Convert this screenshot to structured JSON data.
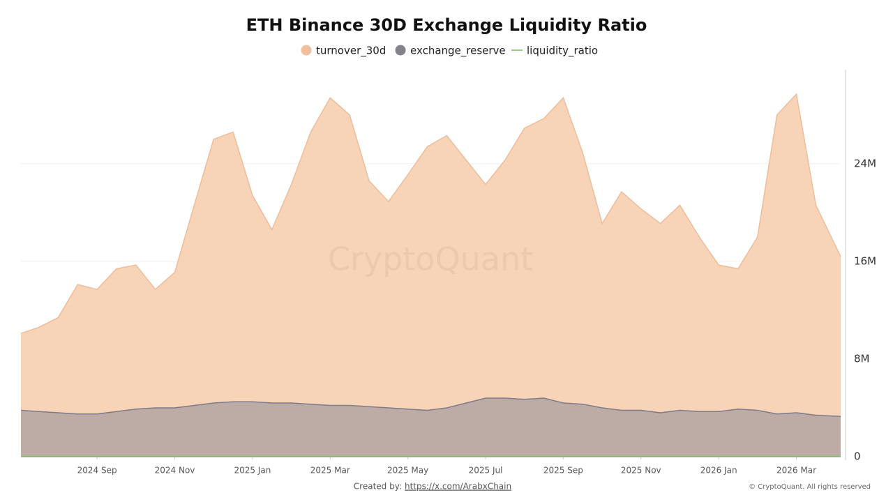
{
  "chart_data": {
    "type": "area",
    "title": "ETH Binance 30D Exchange Liquidity Ratio",
    "watermark": "CryptoQuant",
    "credit_label": "Created by:",
    "credit_link": "https://x.com/ArabxChain",
    "copyright": "© CryptoQuant. All rights reserved",
    "x": [
      0.04,
      0.5,
      1,
      1.5,
      2,
      2.5,
      3,
      3.5,
      4,
      4.5,
      5,
      5.5,
      6,
      6.5,
      7,
      7.5,
      8,
      8.5,
      9,
      9.5,
      10,
      10.5,
      11,
      11.5,
      12,
      12.5,
      13,
      13.5,
      14,
      14.5,
      15,
      15.5,
      16,
      16.5,
      17,
      17.5,
      18,
      18.5,
      19,
      19.5,
      20,
      20.5,
      21.14
    ],
    "xlim": [
      0.04,
      21.14
    ],
    "xticks": [
      {
        "value": 2,
        "label": "2024 Sep"
      },
      {
        "value": 4,
        "label": "2024 Nov"
      },
      {
        "value": 6,
        "label": "2025 Jan"
      },
      {
        "value": 8,
        "label": "2025 Mar"
      },
      {
        "value": 10,
        "label": "2025 May"
      },
      {
        "value": 12,
        "label": "2025 Jul"
      },
      {
        "value": 14,
        "label": "2025 Sep"
      },
      {
        "value": 16,
        "label": "2025 Nov"
      },
      {
        "value": 18,
        "label": "2026 Jan"
      },
      {
        "value": 20,
        "label": "2026 Mar"
      }
    ],
    "ylim": [
      0,
      31700000
    ],
    "yticks": [
      0,
      {
        "value": 8000000,
        "label": "8M"
      },
      {
        "value": 16000000,
        "label": "16M"
      },
      {
        "value": 24000000,
        "label": "24M"
      }
    ],
    "grid": true,
    "series": [
      {
        "name": "turnover_30d",
        "color": "#f0c09c",
        "values": [
          10100000,
          10600000,
          11400000,
          14100000,
          13700000,
          15400000,
          15700000,
          13700000,
          15100000,
          20600000,
          26000000,
          26600000,
          21400000,
          18600000,
          22300000,
          26600000,
          29400000,
          28000000,
          22600000,
          20900000,
          23100000,
          25400000,
          26300000,
          24300000,
          22300000,
          24300000,
          26900000,
          27700000,
          29400000,
          24900000,
          19100000,
          21700000,
          20300000,
          19100000,
          20600000,
          18000000,
          15700000,
          15400000,
          18000000,
          28000000,
          29700000,
          20600000,
          16400000
        ]
      },
      {
        "name": "exchange_reserve",
        "color": "#85828e",
        "values": [
          3800000,
          3700000,
          3600000,
          3500000,
          3500000,
          3700000,
          3900000,
          4000000,
          4000000,
          4200000,
          4400000,
          4500000,
          4500000,
          4400000,
          4400000,
          4300000,
          4200000,
          4200000,
          4100000,
          4000000,
          3900000,
          3800000,
          4000000,
          4400000,
          4800000,
          4800000,
          4700000,
          4800000,
          4400000,
          4300000,
          4000000,
          3800000,
          3800000,
          3600000,
          3800000,
          3700000,
          3700000,
          3900000,
          3800000,
          3500000,
          3600000,
          3400000,
          3300000
        ]
      },
      {
        "name": "liquidity_ratio",
        "color": "#6dbf5a",
        "values": [
          2.7,
          2.9,
          3.2,
          4.0,
          3.9,
          4.2,
          4.0,
          3.4,
          3.8,
          4.9,
          5.9,
          5.9,
          4.8,
          4.2,
          5.1,
          6.2,
          7.0,
          6.7,
          5.5,
          5.2,
          5.9,
          6.7,
          6.6,
          5.5,
          4.6,
          5.1,
          5.7,
          5.8,
          6.7,
          5.8,
          4.8,
          5.7,
          5.3,
          5.3,
          5.4,
          4.9,
          4.2,
          3.9,
          4.7,
          8.0,
          8.3,
          6.1,
          5.0
        ]
      }
    ]
  }
}
